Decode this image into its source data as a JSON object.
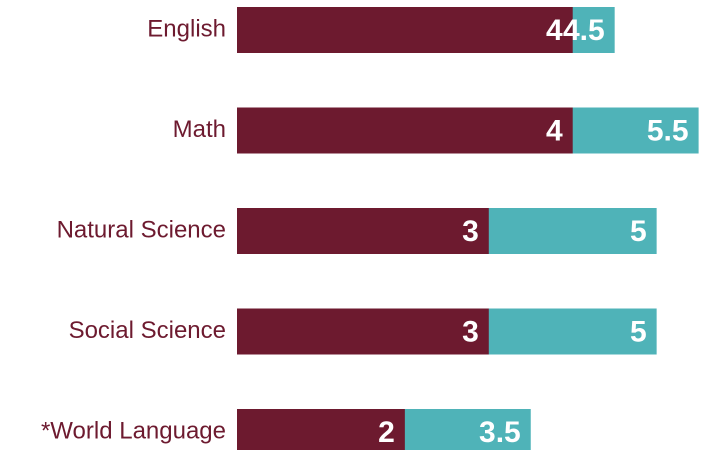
{
  "chart_data": {
    "type": "bar",
    "orientation": "horizontal",
    "categories": [
      "English",
      "Math",
      "Natural Science",
      "Social Science",
      "*World Language"
    ],
    "series": [
      {
        "color": "#6d1a2f",
        "values": [
          4,
          4,
          3,
          3,
          2
        ]
      },
      {
        "color": "#4fb3b8",
        "values": [
          4.5,
          5.5,
          5,
          5,
          3.5
        ]
      }
    ],
    "xlim": [
      0,
      5.6
    ]
  }
}
